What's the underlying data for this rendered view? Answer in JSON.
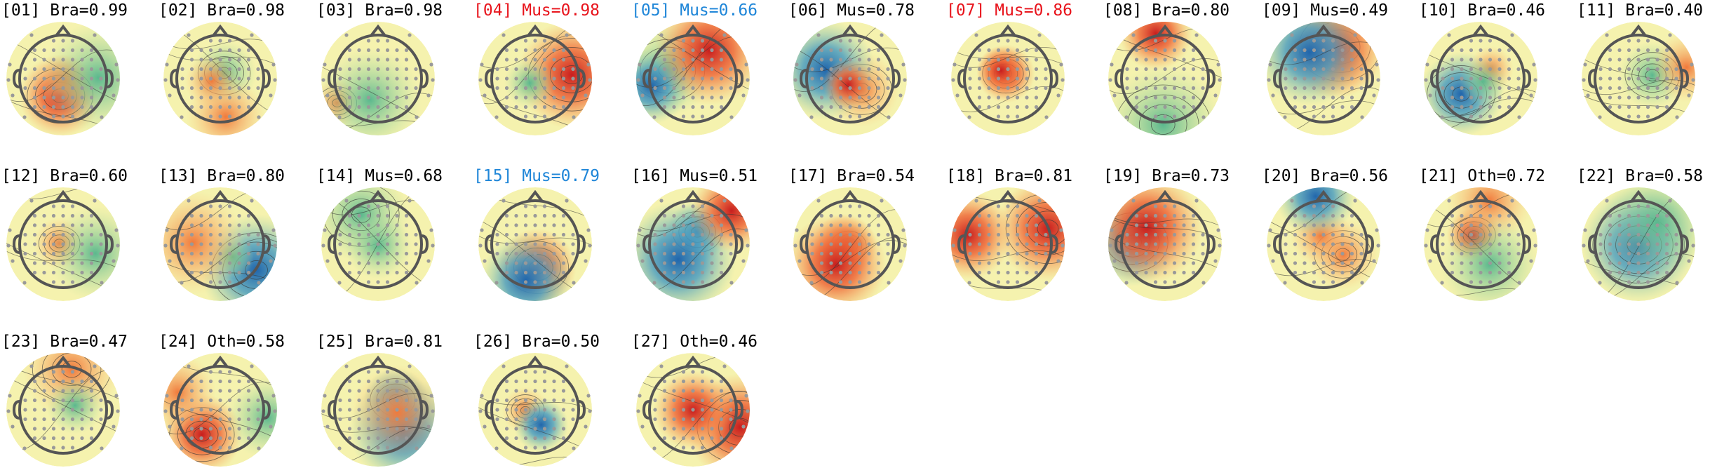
{
  "components": [
    {
      "label": "[01] Bra=0.99",
      "color": "#000000"
    },
    {
      "label": "[02] Bra=0.98",
      "color": "#000000"
    },
    {
      "label": "[03] Bra=0.98",
      "color": "#000000"
    },
    {
      "label": "[04] Mus=0.98",
      "color": "#e8141c"
    },
    {
      "label": "[05] Mus=0.66",
      "color": "#1f86d8"
    },
    {
      "label": "[06] Mus=0.78",
      "color": "#000000"
    },
    {
      "label": "[07] Mus=0.86",
      "color": "#e8141c"
    },
    {
      "label": "[08] Bra=0.80",
      "color": "#000000"
    },
    {
      "label": "[09] Mus=0.49",
      "color": "#000000"
    },
    {
      "label": "[10] Bra=0.46",
      "color": "#000000"
    },
    {
      "label": "[11] Bra=0.40",
      "color": "#000000"
    },
    {
      "label": "[12] Bra=0.60",
      "color": "#000000"
    },
    {
      "label": "[13] Bra=0.80",
      "color": "#000000"
    },
    {
      "label": "[14] Mus=0.68",
      "color": "#000000"
    },
    {
      "label": "[15] Mus=0.79",
      "color": "#1f86d8"
    },
    {
      "label": "[16] Mus=0.51",
      "color": "#000000"
    },
    {
      "label": "[17] Bra=0.54",
      "color": "#000000"
    },
    {
      "label": "[18] Bra=0.81",
      "color": "#000000"
    },
    {
      "label": "[19] Bra=0.73",
      "color": "#000000"
    },
    {
      "label": "[20] Bra=0.56",
      "color": "#000000"
    },
    {
      "label": "[21] Oth=0.72",
      "color": "#000000"
    },
    {
      "label": "[22] Bra=0.58",
      "color": "#000000"
    },
    {
      "label": "[23] Bra=0.47",
      "color": "#000000"
    },
    {
      "label": "[24] Oth=0.58",
      "color": "#000000"
    },
    {
      "label": "[25] Bra=0.81",
      "color": "#000000"
    },
    {
      "label": "[26] Bra=0.50",
      "color": "#000000"
    },
    {
      "label": "[27] Oth=0.46",
      "color": "#000000"
    }
  ]
}
